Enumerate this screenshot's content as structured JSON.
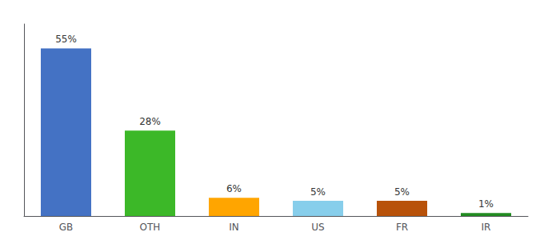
{
  "chart_data": {
    "type": "bar",
    "categories": [
      "GB",
      "OTH",
      "IN",
      "US",
      "FR",
      "IR"
    ],
    "values": [
      55,
      28,
      6,
      5,
      5,
      1
    ],
    "value_labels": [
      "55%",
      "28%",
      "6%",
      "5%",
      "5%",
      "1%"
    ],
    "data_labels": true,
    "colors": [
      "#4472C4",
      "#3CB828",
      "#FFA500",
      "#87CEEB",
      "#B8520A",
      "#228B22"
    ],
    "ylim": [
      0,
      63
    ],
    "tick_labels": "x",
    "grid": false
  }
}
